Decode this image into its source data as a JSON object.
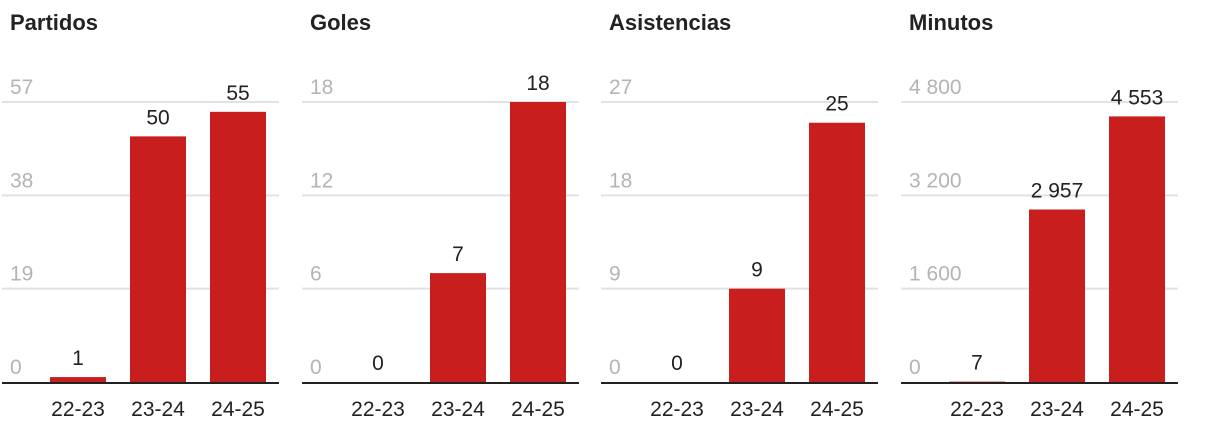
{
  "colors": {
    "bar": "#c81e1e",
    "grid": "#e2e2e2",
    "baseline": "#222222",
    "tick": "#b4b4b4",
    "text": "#222222"
  },
  "chart_data": [
    {
      "type": "bar",
      "title": "Partidos",
      "categories": [
        "22-23",
        "23-24",
        "24-25"
      ],
      "values": [
        1,
        50,
        55
      ],
      "value_labels": [
        "1",
        "50",
        "55"
      ],
      "yticks": [
        0,
        19,
        38,
        57
      ],
      "ytick_labels": [
        "0",
        "19",
        "38",
        "57"
      ],
      "ylim": [
        0,
        57
      ],
      "grid": true
    },
    {
      "type": "bar",
      "title": "Goles",
      "categories": [
        "22-23",
        "23-24",
        "24-25"
      ],
      "values": [
        0,
        7,
        18
      ],
      "value_labels": [
        "0",
        "7",
        "18"
      ],
      "yticks": [
        0,
        6,
        12,
        18
      ],
      "ytick_labels": [
        "0",
        "6",
        "12",
        "18"
      ],
      "ylim": [
        0,
        18
      ],
      "grid": true
    },
    {
      "type": "bar",
      "title": "Asistencias",
      "categories": [
        "22-23",
        "23-24",
        "24-25"
      ],
      "values": [
        0,
        9,
        25
      ],
      "value_labels": [
        "0",
        "9",
        "25"
      ],
      "yticks": [
        0,
        9,
        18,
        27
      ],
      "ytick_labels": [
        "0",
        "9",
        "18",
        "27"
      ],
      "ylim": [
        0,
        27
      ],
      "grid": true
    },
    {
      "type": "bar",
      "title": "Minutos",
      "categories": [
        "22-23",
        "23-24",
        "24-25"
      ],
      "values": [
        7,
        2957,
        4553
      ],
      "value_labels": [
        "7",
        "2 957",
        "4 553"
      ],
      "yticks": [
        0,
        1600,
        3200,
        4800
      ],
      "ytick_labels": [
        "0",
        "1 600",
        "3 200",
        "4 800"
      ],
      "ylim": [
        0,
        4800
      ],
      "grid": true
    }
  ]
}
